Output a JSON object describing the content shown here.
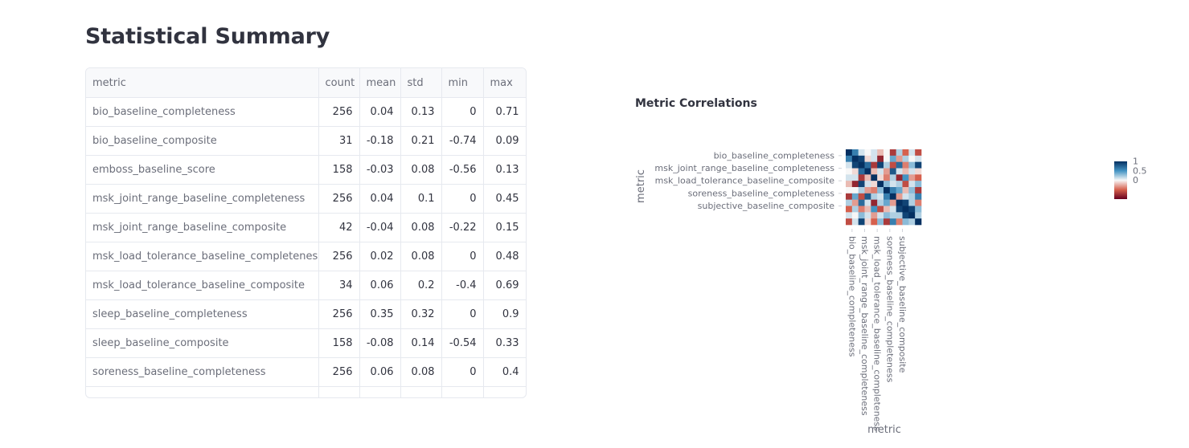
{
  "page": {
    "title": "Statistical Summary"
  },
  "summary_table": {
    "columns": [
      "metric",
      "count",
      "mean",
      "std",
      "min",
      "max"
    ],
    "rows": [
      [
        "bio_baseline_completeness",
        "256",
        "0.04",
        "0.13",
        "0",
        "0.71"
      ],
      [
        "bio_baseline_composite",
        "31",
        "-0.18",
        "0.21",
        "-0.74",
        "0.09"
      ],
      [
        "emboss_baseline_score",
        "158",
        "-0.03",
        "0.08",
        "-0.56",
        "0.13"
      ],
      [
        "msk_joint_range_baseline_completeness",
        "256",
        "0.04",
        "0.1",
        "0",
        "0.45"
      ],
      [
        "msk_joint_range_baseline_composite",
        "42",
        "-0.04",
        "0.08",
        "-0.22",
        "0.15"
      ],
      [
        "msk_load_tolerance_baseline_completeness",
        "256",
        "0.02",
        "0.08",
        "0",
        "0.48"
      ],
      [
        "msk_load_tolerance_baseline_composite",
        "34",
        "0.06",
        "0.2",
        "-0.4",
        "0.69"
      ],
      [
        "sleep_baseline_completeness",
        "256",
        "0.35",
        "0.32",
        "0",
        "0.9"
      ],
      [
        "sleep_baseline_composite",
        "158",
        "-0.08",
        "0.14",
        "-0.54",
        "0.33"
      ],
      [
        "soreness_baseline_completeness",
        "256",
        "0.06",
        "0.08",
        "0",
        "0.4"
      ]
    ]
  },
  "chart_data": {
    "type": "heatmap",
    "title": "Metric Correlations",
    "xlabel": "metric",
    "ylabel": "metric",
    "y_tick_labels": [
      "bio_baseline_completeness",
      "msk_joint_range_baseline_completeness",
      "msk_load_tolerance_baseline_composite",
      "soreness_baseline_completeness",
      "subjective_baseline_composite"
    ],
    "x_tick_labels": [
      "bio_baseline_completeness",
      "msk_joint_range_baseline_completeness",
      "msk_load_tolerance_baseline_completeness",
      "soreness_baseline_completeness",
      "subjective_baseline_composite"
    ],
    "colorscale": [
      "#b2182b",
      "#f7f7f7",
      "#2166ac"
    ],
    "colorbar_ticks": [
      "1",
      "0.5",
      "0"
    ],
    "zmin": -1,
    "zmax": 1,
    "matrix": [
      [
        1,
        0.6,
        0.1,
        0.0,
        0.1,
        -0.2,
        0.0,
        -0.7,
        0.2,
        -0.5,
        0.1,
        -0.6
      ],
      [
        0.6,
        1,
        0.9,
        -0.1,
        0.1,
        -0.8,
        0.0,
        0.4,
        -0.3,
        0.2,
        0.0,
        0.1
      ],
      [
        0.1,
        0.9,
        1,
        0.7,
        -0.7,
        0.9,
        0.2,
        -0.6,
        0.7,
        -0.4,
        0.3,
        0.9
      ],
      [
        0.0,
        -0.1,
        0.7,
        1,
        -0.2,
        0.1,
        -0.3,
        0.8,
        0.1,
        -0.2,
        0.1,
        -0.1
      ],
      [
        0.1,
        0.1,
        -0.7,
        -0.2,
        1,
        -0.1,
        -0.4,
        0.2,
        -0.8,
        0.5,
        -0.3,
        -0.5
      ],
      [
        -0.2,
        -0.8,
        0.9,
        0.1,
        -0.1,
        1,
        0.3,
        0.1,
        0.2,
        -0.6,
        0.1,
        0.3
      ],
      [
        0.0,
        0.0,
        0.2,
        -0.3,
        -0.4,
        0.3,
        1,
        0.6,
        0.4,
        -0.2,
        0.3,
        -0.7
      ],
      [
        -0.7,
        0.4,
        -0.6,
        0.8,
        0.2,
        0.1,
        0.6,
        1,
        -0.3,
        0.1,
        0.2,
        0.6
      ],
      [
        0.2,
        -0.3,
        0.7,
        0.1,
        -0.8,
        0.2,
        0.4,
        -0.3,
        1,
        0.9,
        0.2,
        -0.4
      ],
      [
        -0.5,
        0.2,
        -0.4,
        -0.2,
        0.5,
        -0.6,
        -0.2,
        0.1,
        0.9,
        1,
        0.9,
        0.3
      ],
      [
        0.1,
        0.0,
        0.3,
        0.1,
        -0.3,
        0.1,
        0.3,
        0.2,
        0.2,
        0.9,
        1,
        0.2
      ],
      [
        -0.6,
        0.1,
        0.9,
        -0.1,
        -0.5,
        0.3,
        -0.7,
        0.6,
        -0.4,
        0.3,
        0.2,
        1
      ]
    ]
  }
}
